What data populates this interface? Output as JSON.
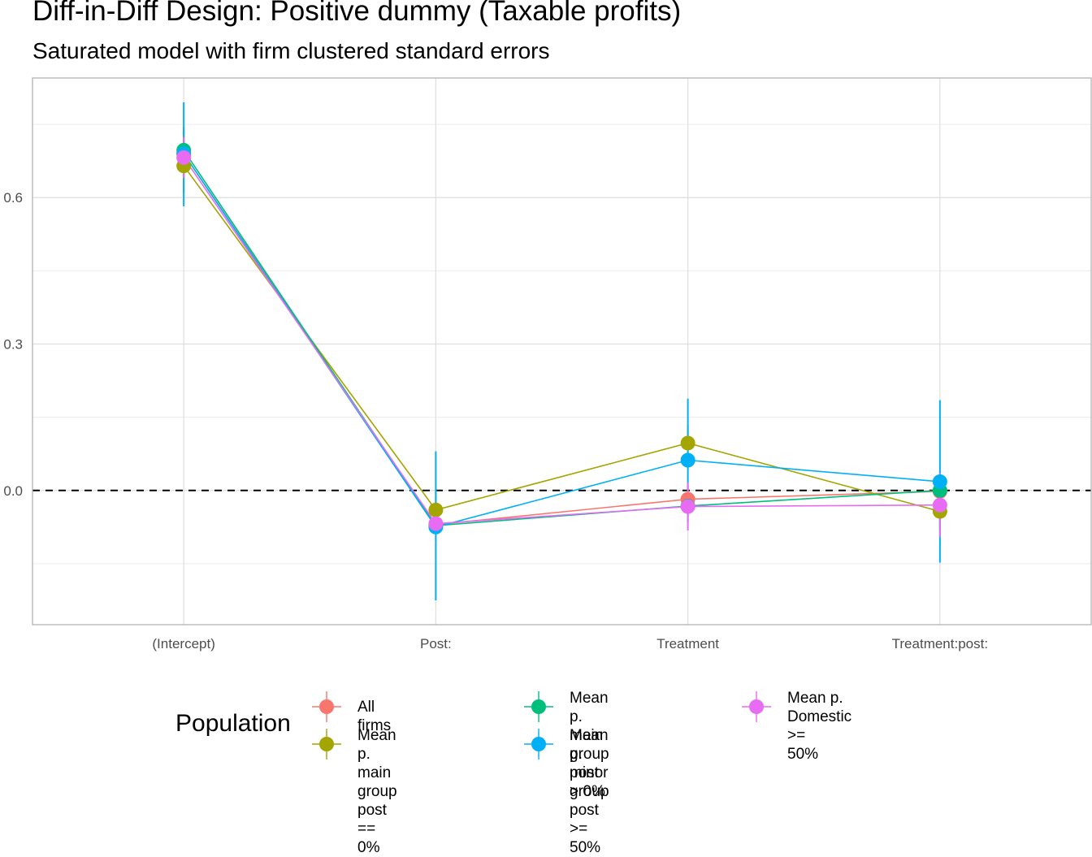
{
  "chart_data": {
    "type": "scatter",
    "title": "Diff-in-Diff Design: Positive dummy (Taxable profits)",
    "subtitle": "Saturated model with firm clustered standard errors",
    "categories": [
      "(Intercept)",
      "Post:",
      "Treatment",
      "Treatment:post:"
    ],
    "ylim": [
      -0.275,
      0.845
    ],
    "yticks": [
      0.0,
      0.3,
      0.6
    ],
    "ytick_labels": [
      "0.0",
      "0.3",
      "0.6"
    ],
    "reference_line": {
      "y": 0.0,
      "style": "dashed"
    },
    "grid": true,
    "legend": {
      "title": "Population",
      "position": "bottom"
    },
    "series": [
      {
        "name": "All firms",
        "color": "#F8766D",
        "values": [
          0.69,
          -0.07,
          -0.018,
          -0.002
        ],
        "lower": [
          0.64,
          -0.085,
          -0.045,
          -0.02
        ],
        "upper": [
          0.74,
          -0.055,
          0.01,
          0.016
        ]
      },
      {
        "name": "Mean p. main group\npost == 0%",
        "color": "#A3A500",
        "values": [
          0.665,
          -0.04,
          0.097,
          -0.043
        ],
        "lower": [
          0.61,
          -0.08,
          0.06,
          -0.08
        ],
        "upper": [
          0.72,
          0.0,
          0.134,
          -0.006
        ]
      },
      {
        "name": "Mean p. main group\npost > 0%",
        "color": "#00BF7D",
        "values": [
          0.697,
          -0.072,
          -0.032,
          0.0
        ],
        "lower": [
          0.65,
          -0.09,
          -0.05,
          -0.02
        ],
        "upper": [
          0.745,
          -0.054,
          -0.014,
          0.02
        ]
      },
      {
        "name": "Mean p. minor group\npost >= 50%",
        "color": "#00B0F6",
        "values": [
          0.69,
          -0.075,
          0.062,
          0.018
        ],
        "lower": [
          0.582,
          -0.225,
          -0.065,
          -0.148
        ],
        "upper": [
          0.795,
          0.08,
          0.188,
          0.185
        ]
      },
      {
        "name": "Mean p. Domestic >=\n50%",
        "color": "#E76BF3",
        "values": [
          0.682,
          -0.068,
          -0.033,
          -0.03
        ],
        "lower": [
          0.64,
          -0.09,
          -0.082,
          -0.095
        ],
        "upper": [
          0.724,
          -0.046,
          0.016,
          0.035
        ]
      }
    ]
  }
}
